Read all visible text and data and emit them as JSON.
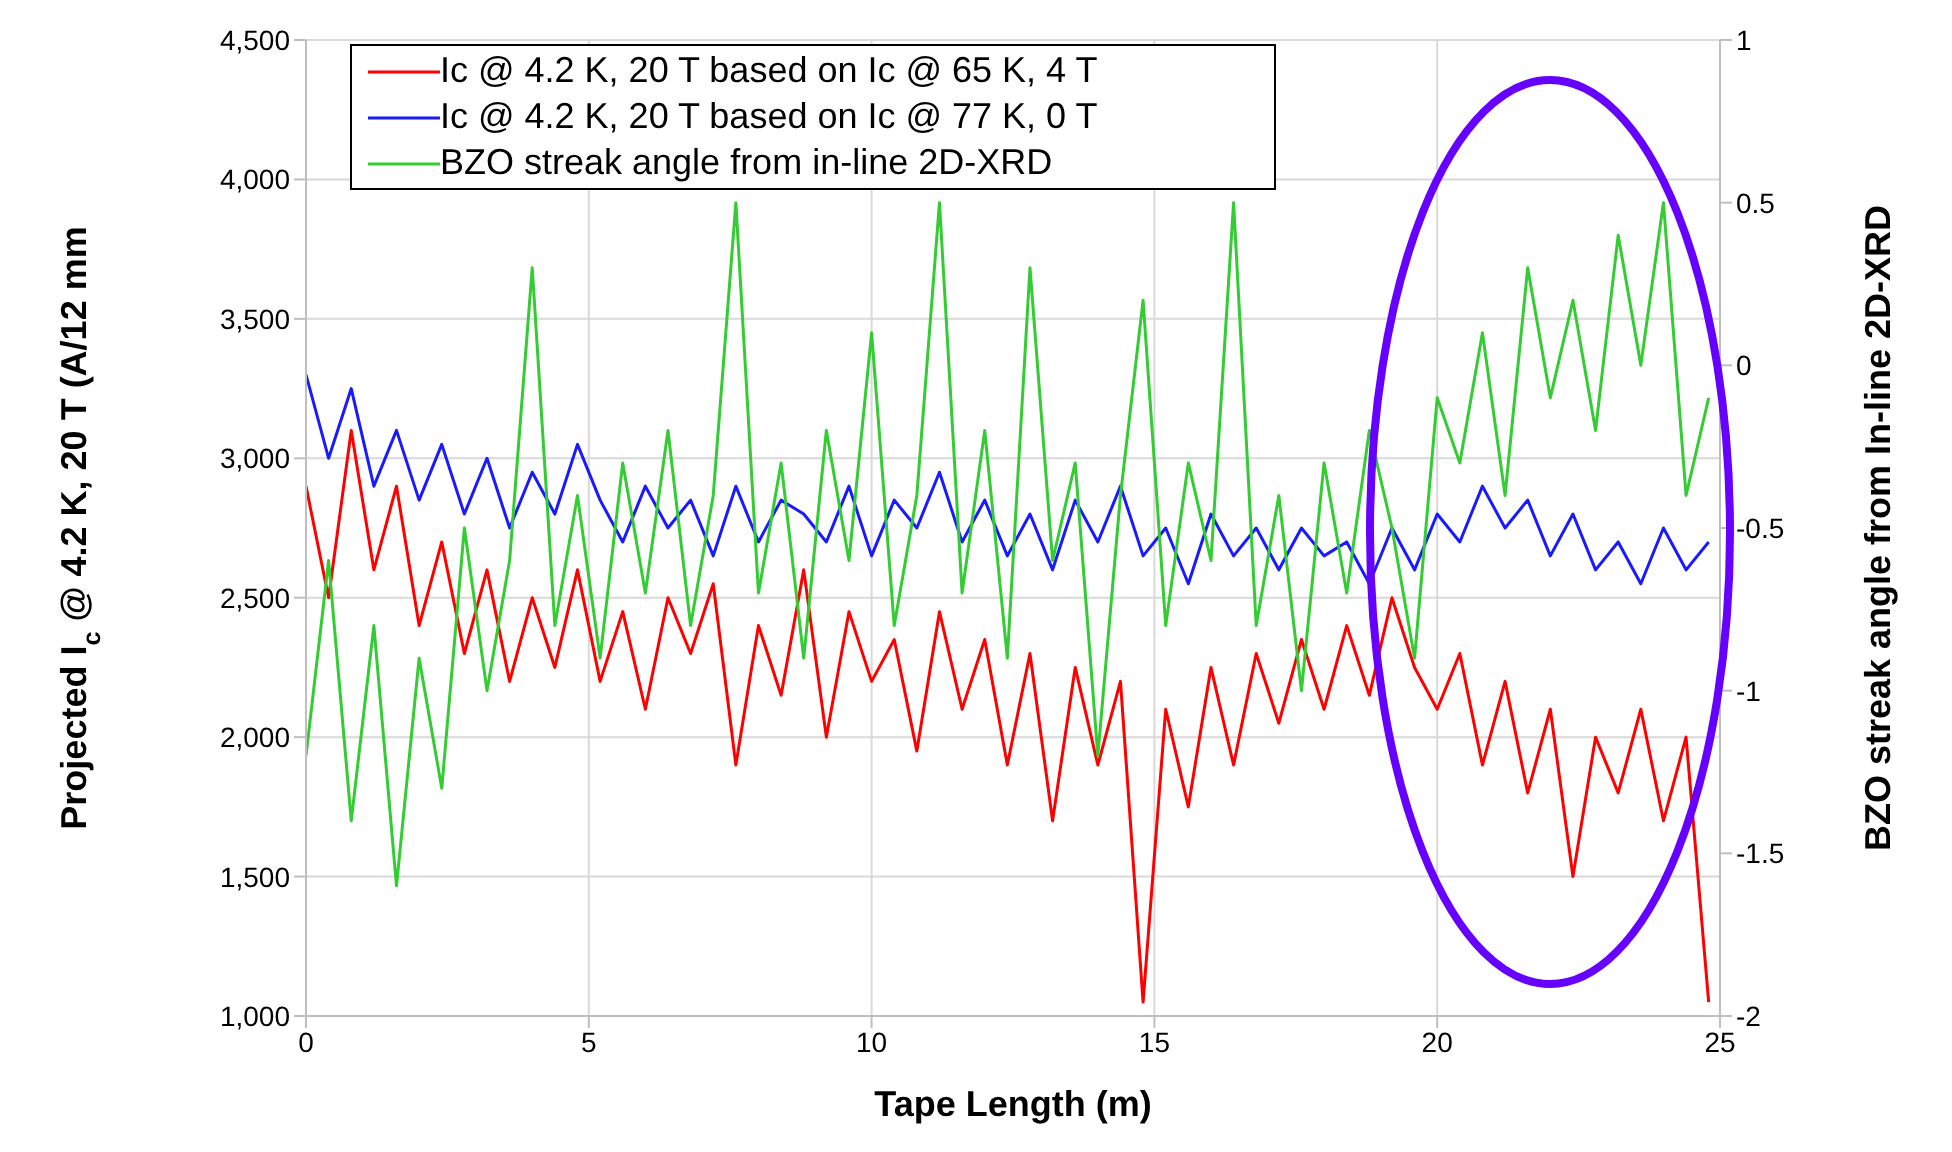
{
  "chart_data": {
    "type": "line",
    "xlabel": "Tape Length (m)",
    "ylabel": "Projected I$_{c}$ @ 4.2 K, 20 T (A/12 mm",
    "y2label": "BZO streak angle from In-line 2D-XRD",
    "x": [
      0,
      0.4,
      0.8,
      1.2,
      1.6,
      2.0,
      2.4,
      2.8,
      3.2,
      3.6,
      4.0,
      4.4,
      4.8,
      5.2,
      5.6,
      6.0,
      6.4,
      6.8,
      7.2,
      7.6,
      8.0,
      8.4,
      8.8,
      9.2,
      9.6,
      10.0,
      10.4,
      10.8,
      11.2,
      11.6,
      12.0,
      12.4,
      12.8,
      13.2,
      13.6,
      14.0,
      14.4,
      14.8,
      15.2,
      15.6,
      16.0,
      16.4,
      16.8,
      17.2,
      17.6,
      18.0,
      18.4,
      18.8,
      19.2,
      19.6,
      20.0,
      20.4,
      20.8,
      21.2,
      21.6,
      22.0,
      22.4,
      22.8,
      23.2,
      23.6,
      24.0,
      24.4,
      24.8
    ],
    "series": [
      {
        "name": "Ic @ 4.2 K, 20 T based on Ic @ 65 K, 4 T",
        "color": "#ff0000",
        "values": [
          2900,
          2500,
          3100,
          2600,
          2900,
          2400,
          2700,
          2300,
          2600,
          2200,
          2500,
          2250,
          2600,
          2200,
          2450,
          2100,
          2500,
          2300,
          2550,
          1900,
          2400,
          2150,
          2600,
          2000,
          2450,
          2200,
          2350,
          1950,
          2450,
          2100,
          2350,
          1900,
          2300,
          1700,
          2250,
          1900,
          2200,
          1050,
          2100,
          1750,
          2250,
          1900,
          2300,
          2050,
          2350,
          2100,
          2400,
          2150,
          2500,
          2250,
          2100,
          2300,
          1900,
          2200,
          1800,
          2100,
          1500,
          2000,
          1800,
          2100,
          1700,
          2000,
          1050
        ]
      },
      {
        "name": "Ic @ 4.2 K, 20 T based on Ic @ 77 K, 0 T",
        "color": "#1a1aff",
        "values": [
          3300,
          3000,
          3250,
          2900,
          3100,
          2850,
          3050,
          2800,
          3000,
          2750,
          2950,
          2800,
          3050,
          2850,
          2700,
          2900,
          2750,
          2850,
          2650,
          2900,
          2700,
          2850,
          2800,
          2700,
          2900,
          2650,
          2850,
          2750,
          2950,
          2700,
          2850,
          2650,
          2800,
          2600,
          2850,
          2700,
          2900,
          2650,
          2750,
          2550,
          2800,
          2650,
          2750,
          2600,
          2750,
          2650,
          2700,
          2550,
          2750,
          2600,
          2800,
          2700,
          2900,
          2750,
          2850,
          2650,
          2800,
          2600,
          2700,
          2550,
          2750,
          2600,
          2700
        ]
      },
      {
        "name": "BZO streak angle from in-line 2D-XRD",
        "color": "#33cc33",
        "axis": "y2",
        "values": [
          -1.2,
          -0.6,
          -1.4,
          -0.8,
          -1.6,
          -0.9,
          -1.3,
          -0.5,
          -1.0,
          -0.6,
          0.3,
          -0.8,
          -0.4,
          -0.9,
          -0.3,
          -0.7,
          -0.2,
          -0.8,
          -0.4,
          0.5,
          -0.7,
          -0.3,
          -0.9,
          -0.2,
          -0.6,
          0.1,
          -0.8,
          -0.4,
          0.5,
          -0.7,
          -0.2,
          -0.9,
          0.3,
          -0.6,
          -0.3,
          -1.2,
          -0.4,
          0.2,
          -0.8,
          -0.3,
          -0.6,
          0.5,
          -0.8,
          -0.4,
          -1.0,
          -0.3,
          -0.7,
          -0.2,
          -0.5,
          -0.9,
          -0.1,
          -0.3,
          0.1,
          -0.4,
          0.3,
          -0.1,
          0.2,
          -0.2,
          0.4,
          0.0,
          0.5,
          -0.4,
          -0.1
        ]
      }
    ],
    "xlim": [
      0,
      25
    ],
    "xticks": [
      0,
      5,
      10,
      15,
      20,
      25
    ],
    "ylim": [
      1000,
      4500
    ],
    "yticks": [
      {
        "value": 1000,
        "label": "1,000"
      },
      {
        "value": 1500,
        "label": "1,500"
      },
      {
        "value": 2000,
        "label": "2,000"
      },
      {
        "value": 2500,
        "label": "2,500"
      },
      {
        "value": 3000,
        "label": "3,000"
      },
      {
        "value": 3500,
        "label": "3,500"
      },
      {
        "value": 4000,
        "label": "4,000"
      },
      {
        "value": 4500,
        "label": "4,500"
      }
    ],
    "y2lim": [
      -2,
      1
    ],
    "y2ticks": [
      -2,
      -1.5,
      -1,
      -0.5,
      0,
      0.5,
      1
    ],
    "grid": true,
    "legend": "top left",
    "marker": "none",
    "line_style": "solid"
  }
}
